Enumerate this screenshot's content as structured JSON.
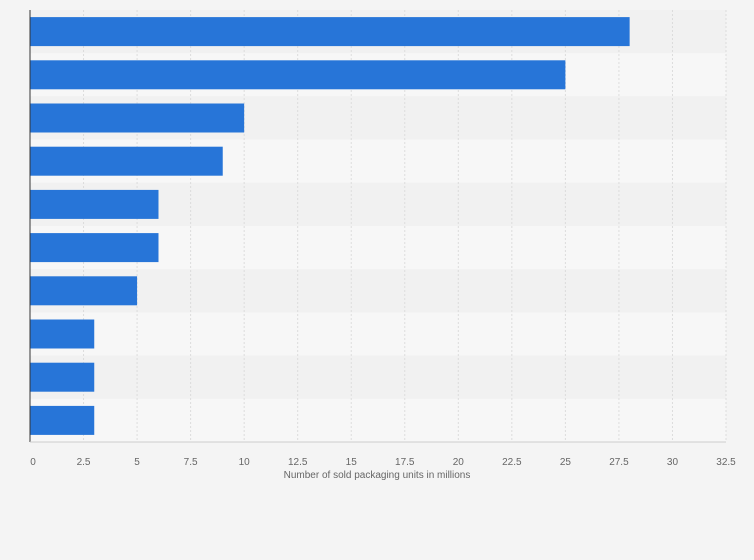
{
  "colors": {
    "background": "#f4f4f4",
    "band_dark": "#f1f1f1",
    "band_light": "#f7f7f7",
    "bar": "#2775d8",
    "grid": "#dcdcdc",
    "axis": "#333333"
  },
  "chart_data": {
    "type": "bar",
    "orientation": "horizontal",
    "categories": [
      "",
      "",
      "",
      "",
      "",
      "",
      "",
      "",
      "",
      ""
    ],
    "values": [
      28,
      25,
      10,
      9,
      6,
      6,
      5,
      3,
      3,
      3
    ],
    "xlabel": "Number of sold packaging units in millions",
    "ylabel": "",
    "xlim": [
      0,
      32.5
    ],
    "xticks": [
      0,
      2.5,
      5,
      7.5,
      10,
      12.5,
      15,
      17.5,
      20,
      22.5,
      25,
      27.5,
      30,
      32.5
    ],
    "xtick_labels": [
      "0",
      "2.5",
      "5",
      "7.5",
      "10",
      "12.5",
      "15",
      "17.5",
      "20",
      "22.5",
      "25",
      "27.5",
      "30",
      "32.5"
    ],
    "grid": true,
    "legend": "none"
  }
}
